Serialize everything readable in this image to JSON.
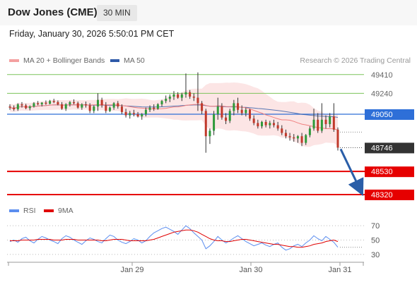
{
  "header": {
    "title": "Dow Jones (CME)",
    "interval": "30 MIN",
    "timestamp": "Friday, January 30, 2026 5:50:01 PM CET",
    "credit": "Research © 2026 Trading Central"
  },
  "legend": {
    "bollinger": {
      "label": "MA 20 + Bollinger Bands",
      "color": "#f4a0a0"
    },
    "ma50": {
      "label": "MA 50",
      "color": "#2e5aa8"
    },
    "rsi": {
      "label": "RSI",
      "color": "#5b8def"
    },
    "ma9": {
      "label": "9MA",
      "color": "#e00000"
    }
  },
  "chart_data": [
    {
      "type": "candlestick",
      "title": "",
      "ylim": [
        48230,
        49460
      ],
      "x_tick_labels": [
        "Jan 29",
        "Jan 30",
        "Jan 31"
      ],
      "current_price": 48746,
      "levels": [
        {
          "value": 49410,
          "label": "49410",
          "kind": "resistance",
          "color": "#7cc35a"
        },
        {
          "value": 49240,
          "label": "49240",
          "kind": "resistance",
          "color": "#7cc35a"
        },
        {
          "value": 49050,
          "label": "49050",
          "kind": "pivot",
          "color": "#2e6fd8"
        },
        {
          "value": 48746,
          "label": "48746",
          "kind": "last",
          "color": "#333333"
        },
        {
          "value": 48530,
          "label": "48530",
          "kind": "support",
          "color": "#e60000"
        },
        {
          "value": 48320,
          "label": "48320",
          "kind": "support",
          "color": "#e60000"
        }
      ],
      "forecast_arrow": {
        "from": 48746,
        "to": 48320,
        "color": "#2a5ea8"
      },
      "candles": [
        [
          49120,
          49140,
          49090,
          49110
        ],
        [
          49110,
          49130,
          49080,
          49095
        ],
        [
          49095,
          49150,
          49080,
          49140
        ],
        [
          49140,
          49160,
          49110,
          49130
        ],
        [
          49130,
          49145,
          49095,
          49105
        ],
        [
          49105,
          49130,
          49085,
          49120
        ],
        [
          49120,
          49160,
          49110,
          49150
        ],
        [
          49150,
          49170,
          49130,
          49140
        ],
        [
          49140,
          49160,
          49120,
          49155
        ],
        [
          49155,
          49175,
          49135,
          49145
        ],
        [
          49145,
          49180,
          49140,
          49170
        ],
        [
          49170,
          49190,
          49150,
          49160
        ],
        [
          49160,
          49175,
          49130,
          49140
        ],
        [
          49140,
          49160,
          49090,
          49100
        ],
        [
          49100,
          49150,
          49080,
          49140
        ],
        [
          49140,
          49170,
          49120,
          49160
        ],
        [
          49160,
          49185,
          49140,
          49150
        ],
        [
          49150,
          49165,
          49100,
          49110
        ],
        [
          49110,
          49150,
          49090,
          49140
        ],
        [
          49140,
          49165,
          49110,
          49130
        ],
        [
          49130,
          49150,
          49060,
          49080
        ],
        [
          49080,
          49130,
          49060,
          49120
        ],
        [
          49120,
          49240,
          49080,
          49180
        ],
        [
          49180,
          49200,
          49110,
          49130
        ],
        [
          49130,
          49160,
          49060,
          49080
        ],
        [
          49080,
          49120,
          49070,
          49110
        ],
        [
          49110,
          49160,
          49090,
          49150
        ],
        [
          49150,
          49170,
          49100,
          49120
        ],
        [
          49120,
          49140,
          49050,
          49070
        ],
        [
          49070,
          49100,
          49020,
          49040
        ],
        [
          49040,
          49080,
          49010,
          49060
        ],
        [
          49060,
          49090,
          49030,
          49050
        ],
        [
          49050,
          49070,
          49020,
          49030
        ],
        [
          49030,
          49060,
          49000,
          49050
        ],
        [
          49050,
          49110,
          49030,
          49090
        ],
        [
          49090,
          49130,
          49070,
          49110
        ],
        [
          49110,
          49140,
          49080,
          49100
        ],
        [
          49100,
          49150,
          49090,
          49140
        ],
        [
          49140,
          49180,
          49120,
          49170
        ],
        [
          49170,
          49220,
          49150,
          49190
        ],
        [
          49190,
          49230,
          49160,
          49210
        ],
        [
          49210,
          49260,
          49180,
          49230
        ],
        [
          49230,
          49250,
          49190,
          49200
        ],
        [
          49200,
          49245,
          49170,
          49230
        ],
        [
          49230,
          49420,
          49200,
          49250
        ],
        [
          49250,
          49270,
          49190,
          49210
        ],
        [
          49210,
          49240,
          49170,
          49200
        ],
        [
          49200,
          49430,
          49080,
          49150
        ],
        [
          49150,
          49170,
          49050,
          49080
        ],
        [
          49080,
          49100,
          48700,
          48850
        ],
        [
          48850,
          48920,
          48780,
          48900
        ],
        [
          48900,
          49080,
          48860,
          49050
        ],
        [
          49050,
          49200,
          49000,
          49120
        ],
        [
          49120,
          49150,
          49000,
          49020
        ],
        [
          49020,
          49060,
          48960,
          48990
        ],
        [
          48990,
          49100,
          48970,
          49080
        ],
        [
          49080,
          49180,
          49040,
          49150
        ],
        [
          49150,
          49200,
          49060,
          49090
        ],
        [
          49090,
          49130,
          49040,
          49060
        ],
        [
          49060,
          49110,
          49030,
          49090
        ],
        [
          49090,
          49100,
          48990,
          49010
        ],
        [
          49010,
          49040,
          48950,
          48970
        ],
        [
          48970,
          49000,
          48920,
          48940
        ],
        [
          48940,
          48990,
          48920,
          48980
        ],
        [
          48980,
          49000,
          48930,
          48950
        ],
        [
          48950,
          48990,
          48920,
          48970
        ],
        [
          48970,
          49000,
          48930,
          48950
        ],
        [
          48950,
          48980,
          48900,
          48920
        ],
        [
          48920,
          48950,
          48860,
          48880
        ],
        [
          48880,
          48910,
          48830,
          48850
        ],
        [
          48850,
          48880,
          48810,
          48840
        ],
        [
          48840,
          48870,
          48800,
          48830
        ],
        [
          48830,
          48860,
          48790,
          48850
        ],
        [
          48850,
          48880,
          48760,
          48790
        ],
        [
          48790,
          48870,
          48770,
          48860
        ],
        [
          48860,
          48940,
          48840,
          48920
        ],
        [
          48920,
          49100,
          48900,
          49000
        ],
        [
          49000,
          49060,
          48880,
          48900
        ],
        [
          48900,
          49150,
          48880,
          49000
        ],
        [
          49000,
          49040,
          48920,
          48960
        ],
        [
          48960,
          49060,
          48930,
          49030
        ],
        [
          49030,
          49150,
          48890,
          48910
        ],
        [
          48910,
          48930,
          48720,
          48746
        ]
      ]
    },
    {
      "type": "line",
      "title": "",
      "ylim": [
        25,
        78
      ],
      "y_ticks": [
        70,
        50,
        30
      ],
      "series": [
        {
          "name": "RSI",
          "color": "#5b8def",
          "values": [
            48,
            50,
            47,
            52,
            54,
            49,
            46,
            51,
            55,
            53,
            50,
            48,
            45,
            52,
            56,
            54,
            50,
            47,
            44,
            49,
            53,
            51,
            48,
            46,
            52,
            57,
            55,
            50,
            47,
            45,
            48,
            52,
            50,
            46,
            49,
            55,
            60,
            63,
            66,
            68,
            65,
            62,
            58,
            64,
            70,
            66,
            60,
            55,
            50,
            38,
            42,
            48,
            55,
            50,
            46,
            49,
            53,
            56,
            52,
            48,
            45,
            42,
            44,
            46,
            43,
            41,
            44,
            46,
            40,
            36,
            38,
            42,
            44,
            41,
            46,
            50,
            56,
            52,
            49,
            55,
            51,
            47,
            40
          ]
        },
        {
          "name": "9MA",
          "color": "#e00000",
          "values": [
            49,
            49,
            49,
            50,
            50,
            50,
            50,
            51,
            51,
            51,
            51,
            50,
            50,
            50,
            51,
            51,
            51,
            50,
            50,
            50,
            50,
            50,
            50,
            49,
            49,
            50,
            51,
            51,
            51,
            50,
            49,
            49,
            49,
            49,
            49,
            50,
            51,
            53,
            55,
            57,
            59,
            61,
            62,
            63,
            64,
            64,
            63,
            61,
            58,
            55,
            52,
            50,
            49,
            49,
            48,
            48,
            49,
            50,
            51,
            51,
            50,
            49,
            48,
            47,
            46,
            45,
            44,
            44,
            43,
            42,
            41,
            41,
            40,
            40,
            41,
            42,
            44,
            45,
            46,
            48,
            49,
            50,
            48
          ]
        }
      ]
    }
  ]
}
